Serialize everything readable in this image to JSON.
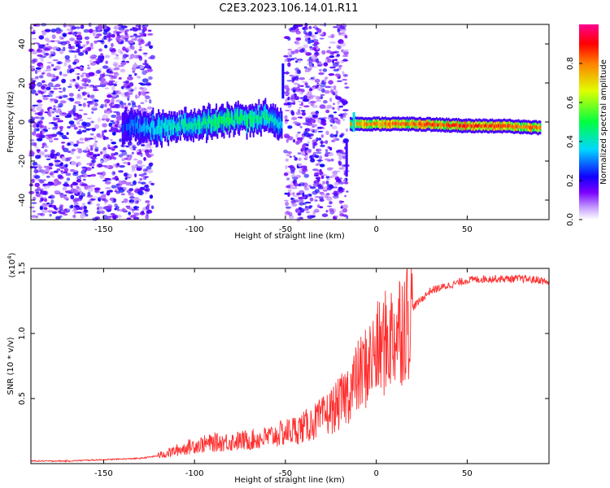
{
  "title": "C2E3.2023.106.14.01.R11",
  "chart_data": [
    {
      "type": "heatmap",
      "xlabel": "Height of straight line (km)",
      "ylabel": "Frequency (Hz)",
      "xlim": [
        -190,
        95
      ],
      "ylim": [
        -50,
        50
      ],
      "xticks": [
        -150,
        -100,
        -50,
        0,
        50
      ],
      "yticks": [
        -40,
        -20,
        0,
        20,
        40
      ],
      "colorbar": {
        "label": "Normalized spectral amplitude",
        "range": [
          0,
          1
        ],
        "ticks": [
          "0.0",
          "0.2",
          "0.4",
          "0.6",
          "0.8"
        ],
        "colors": [
          "#ffffff",
          "#7a00ff",
          "#0000ff",
          "#00d8ff",
          "#00ff40",
          "#ffff00",
          "#ff8000",
          "#ff0000",
          "#ff00a0"
        ]
      },
      "noise_regions": [
        [
          -190,
          -123
        ],
        [
          -50,
          -16
        ]
      ],
      "signal_band": [
        {
          "x": -140,
          "freq": -2,
          "amp": 0.3
        },
        {
          "x": -120,
          "freq": -3,
          "amp": 0.45
        },
        {
          "x": -100,
          "freq": -1,
          "amp": 0.5
        },
        {
          "x": -80,
          "freq": 1,
          "amp": 0.55
        },
        {
          "x": -60,
          "freq": 2,
          "amp": 0.5
        },
        {
          "x": -53,
          "freq": -2,
          "amp": 0.4
        },
        {
          "x": -10,
          "freq": -1,
          "amp": 0.85
        },
        {
          "x": 20,
          "freq": -1,
          "amp": 0.9
        },
        {
          "x": 50,
          "freq": -2,
          "amp": 0.95
        },
        {
          "x": 70,
          "freq": -2,
          "amp": 0.92
        },
        {
          "x": 90,
          "freq": -3,
          "amp": 0.88
        }
      ]
    },
    {
      "type": "line",
      "xlabel": "Height of straight line (km)",
      "ylabel": "SNR (10 * v/v)",
      "multiplier": "(x10",
      "multiplier_exp": "4",
      "multiplier_close": ")",
      "xlim": [
        -190,
        95
      ],
      "ylim": [
        0,
        1.5
      ],
      "xticks": [
        -150,
        -100,
        -50,
        0,
        50
      ],
      "yticks": [
        "0.5",
        "1.0",
        "1.5"
      ],
      "color": "#ff3030",
      "x": [
        -190,
        -170,
        -150,
        -130,
        -120,
        -110,
        -100,
        -90,
        -80,
        -70,
        -60,
        -50,
        -40,
        -30,
        -20,
        -10,
        0,
        10,
        20,
        30,
        40,
        50,
        60,
        70,
        80,
        90,
        95
      ],
      "y": [
        0.02,
        0.02,
        0.03,
        0.04,
        0.06,
        0.1,
        0.14,
        0.16,
        0.17,
        0.18,
        0.2,
        0.24,
        0.28,
        0.35,
        0.46,
        0.66,
        0.85,
        1.0,
        1.2,
        1.33,
        1.37,
        1.41,
        1.42,
        1.42,
        1.42,
        1.41,
        1.39
      ]
    }
  ]
}
